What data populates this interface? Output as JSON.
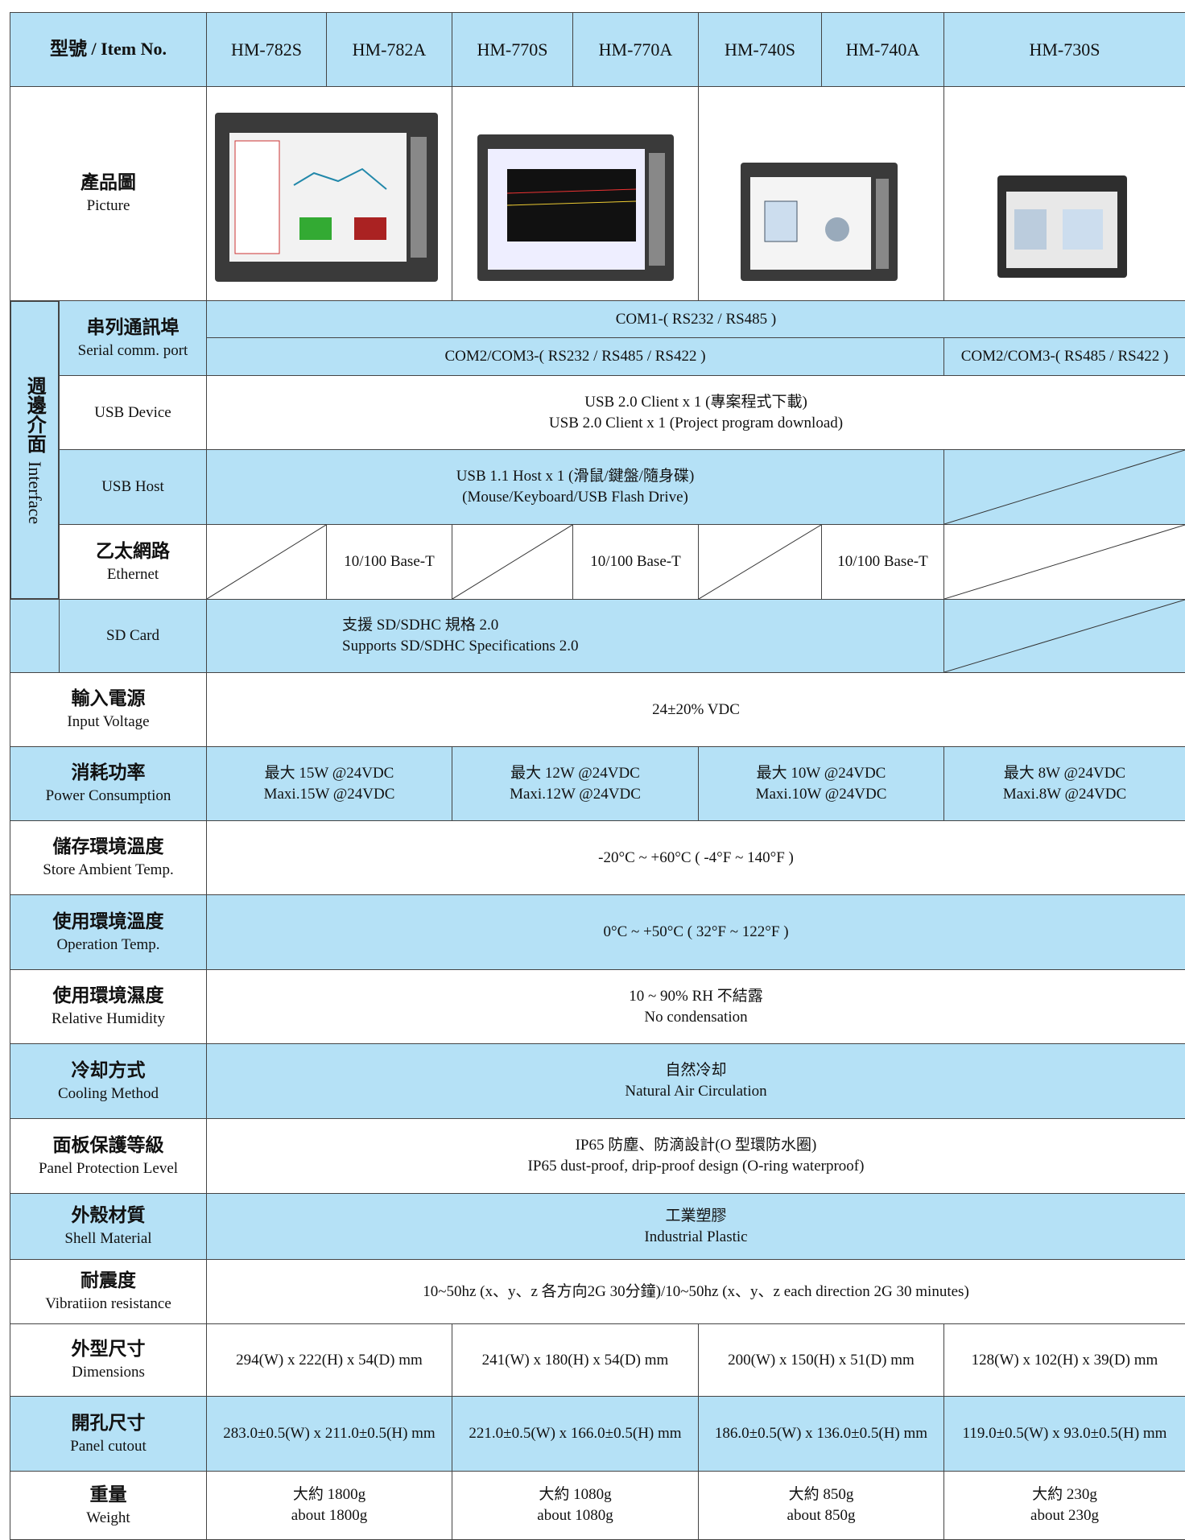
{
  "header": {
    "label_zh": "型號",
    "label_en": "/ Item No.",
    "models": [
      "HM-782S",
      "HM-782A",
      "HM-770S",
      "HM-770A",
      "HM-740S",
      "HM-740A",
      "HM-730S"
    ]
  },
  "picture": {
    "label": [
      "產品圖",
      "Picture"
    ]
  },
  "interface": {
    "label_zh": "週邊介面",
    "label_en": "Interface"
  },
  "rows": [
    {
      "label": [
        "串列通訊埠",
        "Serial comm. port"
      ],
      "values": [
        [
          "COM1-( RS232 / RS485 )"
        ],
        [
          "COM2/COM3-( RS232 / RS485 / RS422 )"
        ],
        [
          "COM2/COM3-( RS485 / RS422 )"
        ]
      ]
    },
    {
      "label": [
        "USB  Device"
      ],
      "values": [
        [
          "USB 2.0 Client x 1 (專案程式下載)",
          "USB 2.0 Client x 1 (Project program download)"
        ]
      ]
    },
    {
      "label": [
        "USB Host"
      ],
      "values": [
        [
          "USB 1.1 Host x 1 (滑鼠/鍵盤/隨身碟)",
          "(Mouse/Keyboard/USB Flash Drive)"
        ]
      ]
    },
    {
      "label": [
        "乙太網路",
        "Ethernet"
      ],
      "values": [
        [
          "10/100 Base-T"
        ],
        [
          "10/100 Base-T"
        ],
        [
          "10/100 Base-T"
        ]
      ]
    },
    {
      "label": [
        "SD Card"
      ],
      "values": [
        [
          "支援 SD/SDHC 規格 2.0",
          "Supports SD/SDHC Specifications 2.0"
        ]
      ]
    },
    {
      "label": [
        "輸入電源",
        "Input Voltage"
      ],
      "values": [
        [
          "24±20% VDC"
        ]
      ]
    },
    {
      "label": [
        "消耗功率",
        "Power Consumption"
      ],
      "values": [
        [
          "最大 15W @24VDC",
          "Maxi.15W @24VDC"
        ],
        [
          "最大 12W @24VDC",
          "Maxi.12W @24VDC"
        ],
        [
          "最大 10W @24VDC",
          "Maxi.10W @24VDC"
        ],
        [
          "最大 8W @24VDC",
          "Maxi.8W @24VDC"
        ]
      ]
    },
    {
      "label": [
        "儲存環境溫度",
        "Store Ambient Temp."
      ],
      "values": [
        [
          "-20°C ~ +60°C ( -4°F ~ 140°F )"
        ]
      ]
    },
    {
      "label": [
        "使用環境溫度",
        "Operation Temp."
      ],
      "values": [
        [
          "0°C ~ +50°C ( 32°F ~ 122°F )"
        ]
      ]
    },
    {
      "label": [
        "使用環境濕度",
        "Relative Humidity"
      ],
      "values": [
        [
          "10 ~ 90% RH 不結露",
          "No condensation"
        ]
      ]
    },
    {
      "label": [
        "冷却方式",
        "Cooling Method"
      ],
      "values": [
        [
          "自然冷却",
          "Natural Air Circulation"
        ]
      ]
    },
    {
      "label": [
        "面板保護等級",
        "Panel Protection Level"
      ],
      "values": [
        [
          "IP65 防塵、防滴設計(O 型環防水圈)",
          "IP65 dust-proof, drip-proof design (O-ring waterproof)"
        ]
      ]
    },
    {
      "label": [
        "外殼材質",
        "Shell Material"
      ],
      "values": [
        [
          "工業塑膠",
          "Industrial Plastic"
        ]
      ]
    },
    {
      "label": [
        "耐震度",
        "Vibratiion resistance"
      ],
      "values": [
        [
          "10~50hz (x、y、z 各方向2G 30分鐘)/10~50hz (x、y、z each direction 2G 30 minutes)"
        ]
      ]
    },
    {
      "label": [
        "外型尺寸",
        "Dimensions"
      ],
      "values": [
        [
          "294(W) x 222(H) x 54(D) mm"
        ],
        [
          "241(W) x 180(H) x 54(D) mm"
        ],
        [
          "200(W) x 150(H) x 51(D) mm"
        ],
        [
          "128(W) x 102(H) x 39(D) mm"
        ]
      ]
    },
    {
      "label": [
        "開孔尺寸",
        "Panel cutout"
      ],
      "values": [
        [
          "283.0±0.5(W) x 211.0±0.5(H) mm"
        ],
        [
          "221.0±0.5(W) x 166.0±0.5(H) mm"
        ],
        [
          "186.0±0.5(W) x 136.0±0.5(H) mm"
        ],
        [
          "119.0±0.5(W) x 93.0±0.5(H) mm"
        ]
      ]
    },
    {
      "label": [
        "重量",
        "Weight"
      ],
      "values": [
        [
          "大約 1800g",
          "about 1800g"
        ],
        [
          "大約 1080g",
          "about 1080g"
        ],
        [
          "大約 850g",
          "about 850g"
        ],
        [
          "大約 230g",
          "about 230g"
        ]
      ]
    }
  ]
}
